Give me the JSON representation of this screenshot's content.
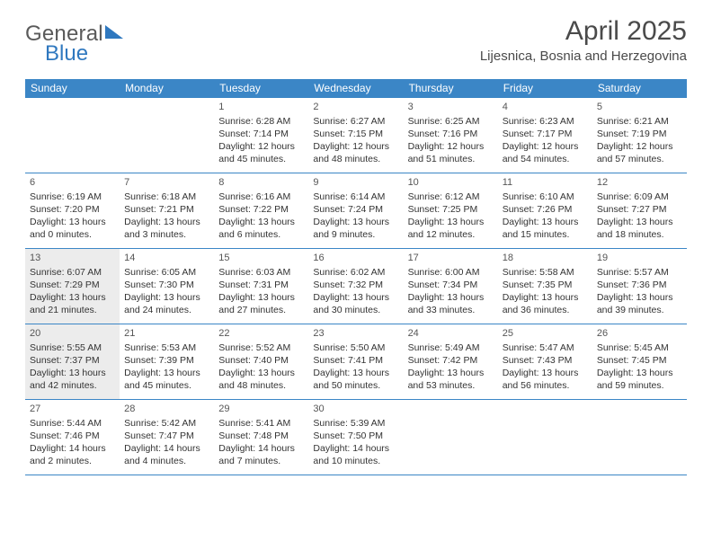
{
  "logo": {
    "general": "General",
    "blue": "Blue"
  },
  "header": {
    "month_title": "April 2025",
    "location": "Lijesnica, Bosnia and Herzegovina"
  },
  "colors": {
    "header_bg": "#3b86c6",
    "header_text": "#ffffff",
    "border": "#3b86c6",
    "shaded_bg": "#ececec",
    "logo_gray": "#5a5a5a",
    "logo_blue": "#2f78bf",
    "body_text": "#333333",
    "title_text": "#4a4a4a"
  },
  "typography": {
    "month_title_fontsize": 30,
    "location_fontsize": 15,
    "dayheader_fontsize": 12,
    "cell_fontsize": 10.5,
    "daynum_fontsize": 11
  },
  "day_names": [
    "Sunday",
    "Monday",
    "Tuesday",
    "Wednesday",
    "Thursday",
    "Friday",
    "Saturday"
  ],
  "weeks": [
    [
      {
        "num": "",
        "empty": true
      },
      {
        "num": "",
        "empty": true
      },
      {
        "num": "1",
        "sunrise": "Sunrise: 6:28 AM",
        "sunset": "Sunset: 7:14 PM",
        "daylight": "Daylight: 12 hours and 45 minutes."
      },
      {
        "num": "2",
        "sunrise": "Sunrise: 6:27 AM",
        "sunset": "Sunset: 7:15 PM",
        "daylight": "Daylight: 12 hours and 48 minutes."
      },
      {
        "num": "3",
        "sunrise": "Sunrise: 6:25 AM",
        "sunset": "Sunset: 7:16 PM",
        "daylight": "Daylight: 12 hours and 51 minutes."
      },
      {
        "num": "4",
        "sunrise": "Sunrise: 6:23 AM",
        "sunset": "Sunset: 7:17 PM",
        "daylight": "Daylight: 12 hours and 54 minutes."
      },
      {
        "num": "5",
        "sunrise": "Sunrise: 6:21 AM",
        "sunset": "Sunset: 7:19 PM",
        "daylight": "Daylight: 12 hours and 57 minutes."
      }
    ],
    [
      {
        "num": "6",
        "sunrise": "Sunrise: 6:19 AM",
        "sunset": "Sunset: 7:20 PM",
        "daylight": "Daylight: 13 hours and 0 minutes."
      },
      {
        "num": "7",
        "sunrise": "Sunrise: 6:18 AM",
        "sunset": "Sunset: 7:21 PM",
        "daylight": "Daylight: 13 hours and 3 minutes."
      },
      {
        "num": "8",
        "sunrise": "Sunrise: 6:16 AM",
        "sunset": "Sunset: 7:22 PM",
        "daylight": "Daylight: 13 hours and 6 minutes."
      },
      {
        "num": "9",
        "sunrise": "Sunrise: 6:14 AM",
        "sunset": "Sunset: 7:24 PM",
        "daylight": "Daylight: 13 hours and 9 minutes."
      },
      {
        "num": "10",
        "sunrise": "Sunrise: 6:12 AM",
        "sunset": "Sunset: 7:25 PM",
        "daylight": "Daylight: 13 hours and 12 minutes."
      },
      {
        "num": "11",
        "sunrise": "Sunrise: 6:10 AM",
        "sunset": "Sunset: 7:26 PM",
        "daylight": "Daylight: 13 hours and 15 minutes."
      },
      {
        "num": "12",
        "sunrise": "Sunrise: 6:09 AM",
        "sunset": "Sunset: 7:27 PM",
        "daylight": "Daylight: 13 hours and 18 minutes."
      }
    ],
    [
      {
        "num": "13",
        "shaded": true,
        "sunrise": "Sunrise: 6:07 AM",
        "sunset": "Sunset: 7:29 PM",
        "daylight": "Daylight: 13 hours and 21 minutes."
      },
      {
        "num": "14",
        "sunrise": "Sunrise: 6:05 AM",
        "sunset": "Sunset: 7:30 PM",
        "daylight": "Daylight: 13 hours and 24 minutes."
      },
      {
        "num": "15",
        "sunrise": "Sunrise: 6:03 AM",
        "sunset": "Sunset: 7:31 PM",
        "daylight": "Daylight: 13 hours and 27 minutes."
      },
      {
        "num": "16",
        "sunrise": "Sunrise: 6:02 AM",
        "sunset": "Sunset: 7:32 PM",
        "daylight": "Daylight: 13 hours and 30 minutes."
      },
      {
        "num": "17",
        "sunrise": "Sunrise: 6:00 AM",
        "sunset": "Sunset: 7:34 PM",
        "daylight": "Daylight: 13 hours and 33 minutes."
      },
      {
        "num": "18",
        "sunrise": "Sunrise: 5:58 AM",
        "sunset": "Sunset: 7:35 PM",
        "daylight": "Daylight: 13 hours and 36 minutes."
      },
      {
        "num": "19",
        "sunrise": "Sunrise: 5:57 AM",
        "sunset": "Sunset: 7:36 PM",
        "daylight": "Daylight: 13 hours and 39 minutes."
      }
    ],
    [
      {
        "num": "20",
        "shaded": true,
        "sunrise": "Sunrise: 5:55 AM",
        "sunset": "Sunset: 7:37 PM",
        "daylight": "Daylight: 13 hours and 42 minutes."
      },
      {
        "num": "21",
        "sunrise": "Sunrise: 5:53 AM",
        "sunset": "Sunset: 7:39 PM",
        "daylight": "Daylight: 13 hours and 45 minutes."
      },
      {
        "num": "22",
        "sunrise": "Sunrise: 5:52 AM",
        "sunset": "Sunset: 7:40 PM",
        "daylight": "Daylight: 13 hours and 48 minutes."
      },
      {
        "num": "23",
        "sunrise": "Sunrise: 5:50 AM",
        "sunset": "Sunset: 7:41 PM",
        "daylight": "Daylight: 13 hours and 50 minutes."
      },
      {
        "num": "24",
        "sunrise": "Sunrise: 5:49 AM",
        "sunset": "Sunset: 7:42 PM",
        "daylight": "Daylight: 13 hours and 53 minutes."
      },
      {
        "num": "25",
        "sunrise": "Sunrise: 5:47 AM",
        "sunset": "Sunset: 7:43 PM",
        "daylight": "Daylight: 13 hours and 56 minutes."
      },
      {
        "num": "26",
        "sunrise": "Sunrise: 5:45 AM",
        "sunset": "Sunset: 7:45 PM",
        "daylight": "Daylight: 13 hours and 59 minutes."
      }
    ],
    [
      {
        "num": "27",
        "sunrise": "Sunrise: 5:44 AM",
        "sunset": "Sunset: 7:46 PM",
        "daylight": "Daylight: 14 hours and 2 minutes."
      },
      {
        "num": "28",
        "sunrise": "Sunrise: 5:42 AM",
        "sunset": "Sunset: 7:47 PM",
        "daylight": "Daylight: 14 hours and 4 minutes."
      },
      {
        "num": "29",
        "sunrise": "Sunrise: 5:41 AM",
        "sunset": "Sunset: 7:48 PM",
        "daylight": "Daylight: 14 hours and 7 minutes."
      },
      {
        "num": "30",
        "sunrise": "Sunrise: 5:39 AM",
        "sunset": "Sunset: 7:50 PM",
        "daylight": "Daylight: 14 hours and 10 minutes."
      },
      {
        "num": "",
        "empty": true
      },
      {
        "num": "",
        "empty": true
      },
      {
        "num": "",
        "empty": true
      }
    ]
  ]
}
